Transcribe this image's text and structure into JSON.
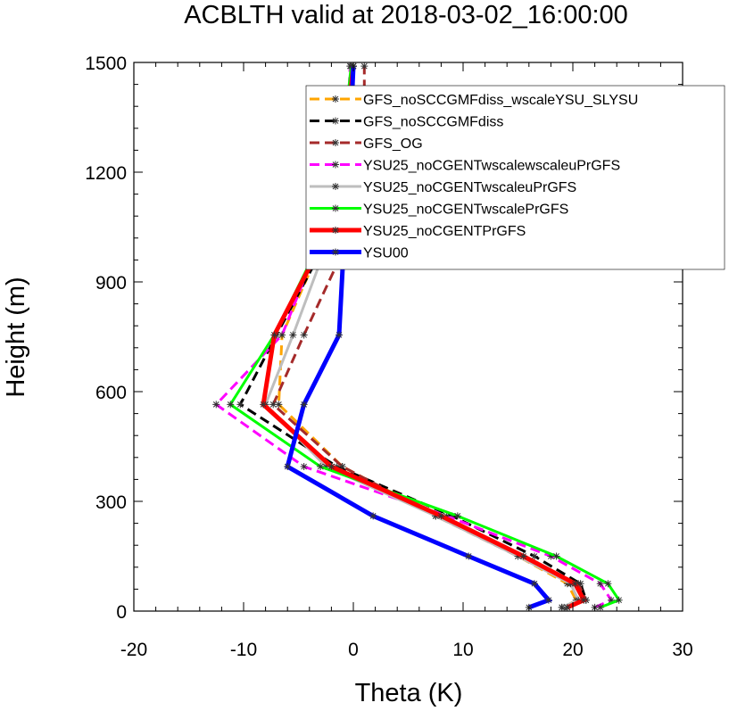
{
  "chart_data": {
    "type": "line",
    "title": "ACBLTH valid at 2018-03-02_16:00:00",
    "xlabel": "Theta (K)",
    "ylabel": "Height (m)",
    "xlim": [
      -20,
      30
    ],
    "ylim": [
      0,
      1500
    ],
    "xticks": [
      "-20",
      "-10",
      "0",
      "10",
      "20",
      "30"
    ],
    "yticks": [
      "0",
      "300",
      "600",
      "900",
      "1200",
      "1500"
    ],
    "legend_position": "top-right",
    "series": [
      {
        "name": "GFS_noSCCGMFdiss_wscaleYSU_SLYSU",
        "color": "#ffa500",
        "dash": "dashed",
        "width": 3,
        "x": [
          19.2,
          20.3,
          19.5,
          15.0,
          7.5,
          -1.0,
          -6.8,
          -6.5,
          -3.2,
          -2.0,
          -1.2,
          -0.5,
          0.0
        ],
        "y": [
          10,
          30,
          75,
          150,
          260,
          395,
          565,
          755,
          980,
          1100,
          1200,
          1350,
          1490
        ]
      },
      {
        "name": "GFS_noSCCGMFdiss",
        "color": "#000000",
        "dash": "dashed",
        "width": 3,
        "x": [
          19.0,
          21.2,
          20.7,
          16.5,
          9.0,
          -1.5,
          -10.3,
          -7.0,
          -3.0,
          -2.0,
          -1.3,
          -0.5,
          0.0
        ],
        "y": [
          10,
          30,
          75,
          150,
          260,
          395,
          565,
          755,
          980,
          1100,
          1200,
          1350,
          1490
        ]
      },
      {
        "name": "GFS_OG",
        "color": "#a52a2a",
        "dash": "dashed",
        "width": 3,
        "x": [
          19.5,
          21.2,
          20.5,
          15.0,
          7.5,
          -1.0,
          -7.3,
          -4.5,
          -1.0,
          0.5,
          1.0,
          1.0,
          1.0
        ],
        "y": [
          10,
          30,
          75,
          150,
          260,
          395,
          565,
          755,
          980,
          1100,
          1200,
          1350,
          1490
        ]
      },
      {
        "name": "YSU25_noCGENTwscalewscaleuPrGFS",
        "color": "#ff00ff",
        "dash": "dashed",
        "width": 3,
        "x": [
          22.0,
          23.5,
          22.5,
          18.0,
          8.5,
          -4.5,
          -12.5,
          -6.5,
          -3.5,
          -2.0,
          -1.5,
          -0.5,
          -0.3
        ],
        "y": [
          10,
          30,
          75,
          150,
          260,
          395,
          565,
          755,
          980,
          1100,
          1200,
          1350,
          1490
        ]
      },
      {
        "name": "YSU25_noCGENTwscaleuPrGFS",
        "color": "#bebebe",
        "dash": "solid",
        "width": 3,
        "x": [
          19.0,
          20.5,
          19.8,
          15.0,
          7.5,
          -2.5,
          -8.0,
          -5.5,
          -2.7,
          -1.8,
          -1.2,
          -0.5,
          0.0
        ],
        "y": [
          10,
          30,
          75,
          150,
          260,
          395,
          565,
          755,
          980,
          1100,
          1200,
          1350,
          1490
        ]
      },
      {
        "name": "YSU25_noCGENTwscalePrGFS",
        "color": "#00ff00",
        "dash": "solid",
        "width": 3,
        "x": [
          22.5,
          24.2,
          23.2,
          18.5,
          9.5,
          -3.0,
          -11.2,
          -7.2,
          -3.5,
          -2.3,
          -1.5,
          -0.7,
          -0.2
        ],
        "y": [
          10,
          30,
          75,
          150,
          260,
          395,
          565,
          755,
          980,
          1100,
          1200,
          1350,
          1490
        ]
      },
      {
        "name": "YSU25_noCGENTPrGFS",
        "color": "#ff0000",
        "dash": "solid",
        "width": 5,
        "x": [
          19.5,
          21.0,
          20.2,
          15.5,
          8.0,
          -2.0,
          -8.2,
          -7.2,
          -3.3,
          -2.0,
          -1.3,
          -0.5,
          0.0
        ],
        "y": [
          10,
          30,
          75,
          150,
          260,
          395,
          565,
          755,
          980,
          1100,
          1200,
          1350,
          1490
        ]
      },
      {
        "name": "YSU00",
        "color": "#0000ff",
        "dash": "solid",
        "width": 5,
        "x": [
          16.0,
          17.8,
          16.5,
          10.5,
          1.8,
          -6.0,
          -4.5,
          -1.3,
          -0.9,
          -0.7,
          -0.5,
          -0.2,
          0.0
        ],
        "y": [
          10,
          30,
          75,
          150,
          260,
          395,
          565,
          755,
          980,
          1100,
          1200,
          1350,
          1490
        ]
      }
    ]
  }
}
